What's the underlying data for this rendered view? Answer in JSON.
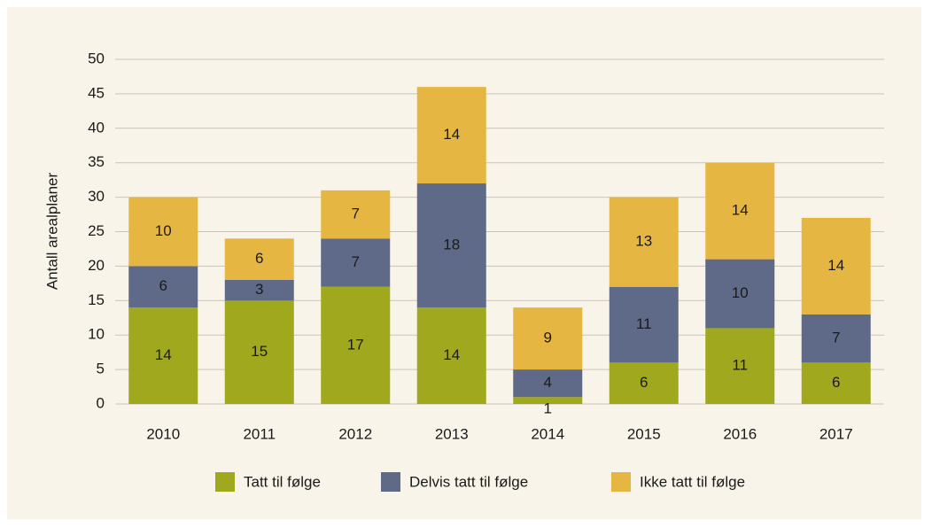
{
  "chart_data": {
    "type": "stacked_bar",
    "y_label": "Antall arealplaner",
    "categories": [
      "2010",
      "2011",
      "2012",
      "2013",
      "2014",
      "2015",
      "2016",
      "2017"
    ],
    "series": [
      {
        "name": "Tatt til følge",
        "color": "#a0a81e",
        "values": [
          14,
          15,
          17,
          14,
          1,
          6,
          11,
          6
        ]
      },
      {
        "name": "Delvis tatt til følge",
        "color": "#5e6a87",
        "values": [
          6,
          3,
          7,
          18,
          4,
          11,
          10,
          7
        ]
      },
      {
        "name": "Ikke tatt til følge",
        "color": "#e6b643",
        "values": [
          10,
          6,
          7,
          14,
          9,
          13,
          14,
          14
        ]
      }
    ],
    "ylim": [
      0,
      50
    ],
    "yticks": [
      0,
      5,
      10,
      15,
      20,
      25,
      30,
      35,
      40,
      45,
      50
    ],
    "grid": true
  }
}
